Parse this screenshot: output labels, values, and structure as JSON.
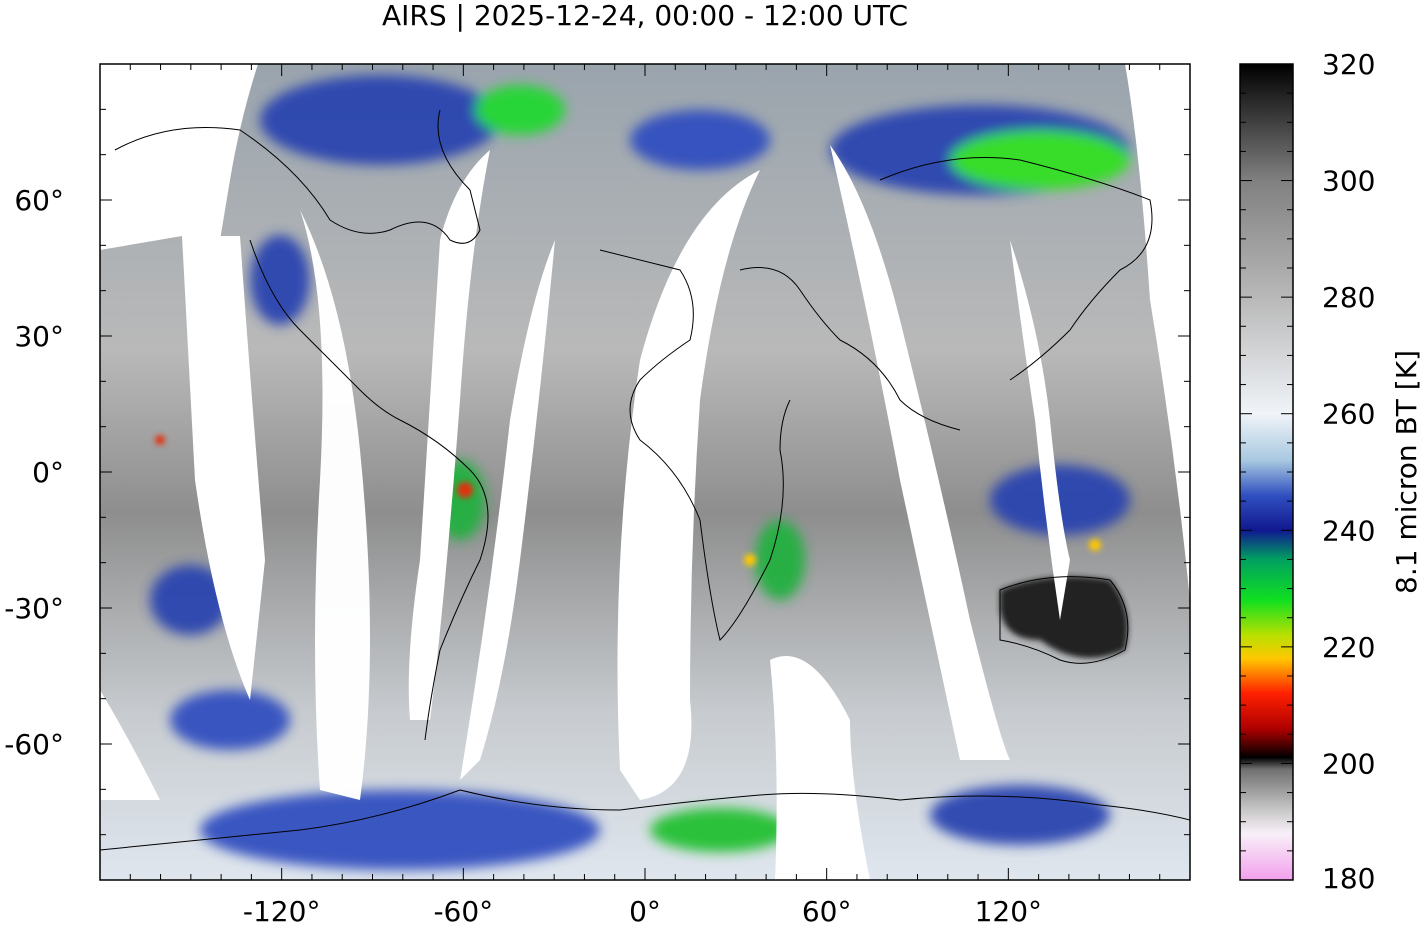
{
  "title": "AIRS | 2025-12-24, 00:00 - 12:00 UTC",
  "map": {
    "projection": "equirectangular",
    "lon_range": [
      -180,
      180
    ],
    "lat_range": [
      -90,
      90
    ],
    "x_ticks": [
      {
        "value": -120,
        "label": "-120°"
      },
      {
        "value": -60,
        "label": "-60°"
      },
      {
        "value": 0,
        "label": "0°"
      },
      {
        "value": 60,
        "label": "60°"
      },
      {
        "value": 120,
        "label": "120°"
      }
    ],
    "y_ticks": [
      {
        "value": 60,
        "label": "60°"
      },
      {
        "value": 30,
        "label": "30°"
      },
      {
        "value": 0,
        "label": "0°"
      },
      {
        "value": -30,
        "label": "-30°"
      },
      {
        "value": -60,
        "label": "-60°"
      }
    ],
    "overlay": "coastlines",
    "swath_gap_color": "#ffffff"
  },
  "colorbar": {
    "label": "8.1 micron BT [K]",
    "min": 180,
    "max": 320,
    "ticks": [
      {
        "value": 320,
        "label": "320"
      },
      {
        "value": 300,
        "label": "300"
      },
      {
        "value": 280,
        "label": "280"
      },
      {
        "value": 260,
        "label": "260"
      },
      {
        "value": 240,
        "label": "240"
      },
      {
        "value": 220,
        "label": "220"
      },
      {
        "value": 200,
        "label": "200"
      },
      {
        "value": 180,
        "label": "180"
      }
    ],
    "stops": [
      {
        "value": 180,
        "color": "#f2a0ec"
      },
      {
        "value": 188,
        "color": "#f8f0f8"
      },
      {
        "value": 192,
        "color": "#c8c8c8"
      },
      {
        "value": 199,
        "color": "#707070"
      },
      {
        "value": 201,
        "color": "#000000"
      },
      {
        "value": 206,
        "color": "#b00000"
      },
      {
        "value": 212,
        "color": "#ff2000"
      },
      {
        "value": 218,
        "color": "#ffc800"
      },
      {
        "value": 222,
        "color": "#b8e000"
      },
      {
        "value": 228,
        "color": "#10e020"
      },
      {
        "value": 235,
        "color": "#00a060"
      },
      {
        "value": 240,
        "color": "#101890"
      },
      {
        "value": 246,
        "color": "#3050c0"
      },
      {
        "value": 252,
        "color": "#a8c8e0"
      },
      {
        "value": 260,
        "color": "#f0f4f8"
      },
      {
        "value": 280,
        "color": "#b8b8b8"
      },
      {
        "value": 300,
        "color": "#808080"
      },
      {
        "value": 320,
        "color": "#000000"
      }
    ]
  }
}
